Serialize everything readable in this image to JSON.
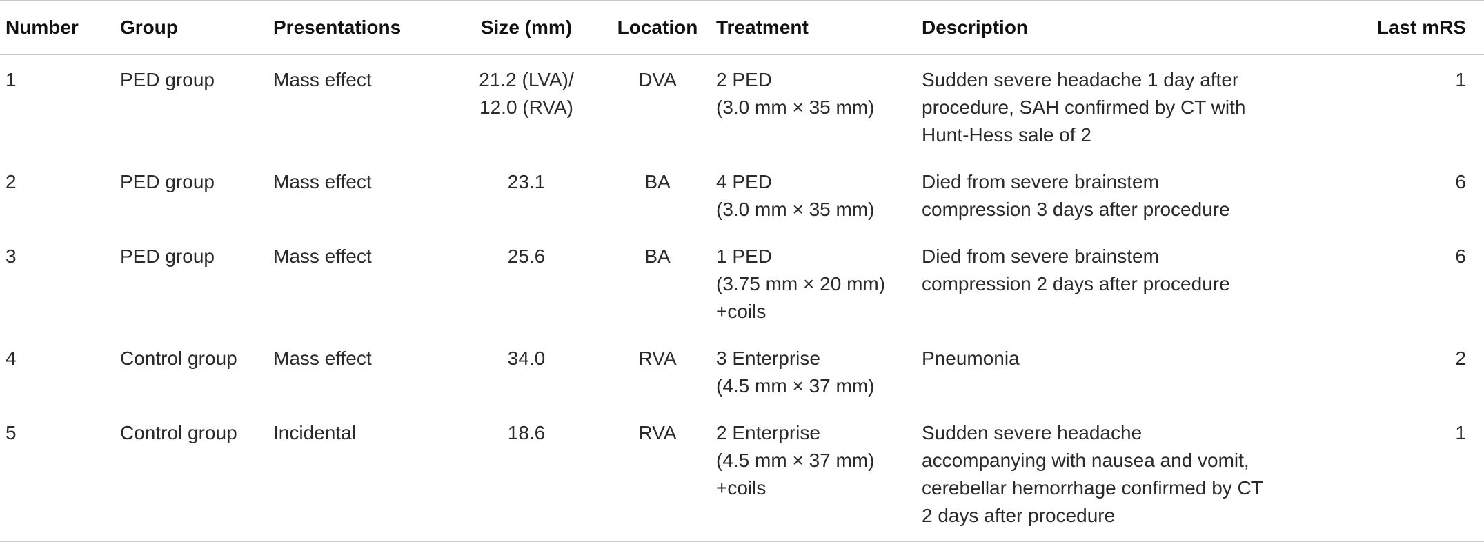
{
  "table": {
    "headers": [
      "Number",
      "Group",
      "Presentations",
      "Size (mm)",
      "Location",
      "Treatment",
      "Description",
      "Last mRS"
    ],
    "rows": [
      {
        "number": "1",
        "group": "PED group",
        "presentation": "Mass effect",
        "size": [
          "21.2 (LVA)/",
          "12.0 (RVA)"
        ],
        "location": "DVA",
        "treatment": [
          "2 PED",
          "(3.0 mm × 35 mm)"
        ],
        "description": [
          "Sudden severe headache 1 day after",
          "procedure, SAH confirmed by CT with",
          "Hunt-Hess sale of 2"
        ],
        "mrs": "1"
      },
      {
        "number": "2",
        "group": "PED group",
        "presentation": "Mass effect",
        "size": [
          "23.1"
        ],
        "location": "BA",
        "treatment": [
          "4 PED",
          "(3.0 mm × 35 mm)"
        ],
        "description": [
          "Died from severe brainstem",
          "compression 3 days after procedure"
        ],
        "mrs": "6"
      },
      {
        "number": "3",
        "group": "PED group",
        "presentation": "Mass effect",
        "size": [
          "25.6"
        ],
        "location": "BA",
        "treatment": [
          "1 PED",
          "(3.75 mm × 20 mm)",
          "+coils"
        ],
        "description": [
          "Died from severe brainstem",
          "compression 2 days after procedure"
        ],
        "mrs": "6"
      },
      {
        "number": "4",
        "group": "Control group",
        "presentation": "Mass effect",
        "size": [
          "34.0"
        ],
        "location": "RVA",
        "treatment": [
          "3 Enterprise",
          "(4.5 mm × 37 mm)"
        ],
        "description": [
          "Pneumonia"
        ],
        "mrs": "2"
      },
      {
        "number": "5",
        "group": "Control group",
        "presentation": "Incidental",
        "size": [
          "18.6"
        ],
        "location": "RVA",
        "treatment": [
          "2 Enterprise",
          "(4.5 mm × 37 mm)",
          "+coils"
        ],
        "description": [
          "Sudden severe headache",
          "accompanying with nausea and vomit,",
          "cerebellar hemorrhage confirmed by CT",
          "2 days after procedure"
        ],
        "mrs": "1"
      }
    ]
  }
}
